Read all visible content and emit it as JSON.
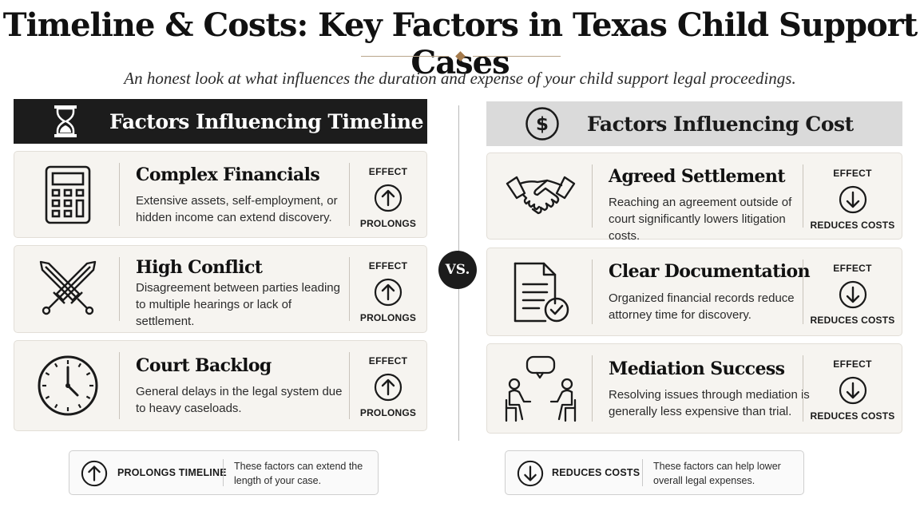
{
  "header": {
    "title": "Timeline & Costs: Key Factors in Texas Child Support Cases",
    "subtitle": "An honest look at what influences the duration and expense of your child support legal proceedings."
  },
  "vs_label": "VS.",
  "timeline": {
    "heading": "Factors Influencing Timeline",
    "heading_icon": "hourglass-icon",
    "effect_label": "EFFECT",
    "cards": [
      {
        "title": "Complex Financials",
        "description": "Extensive assets, self-employment, or hidden income can extend discovery.",
        "icon": "calculator-icon",
        "effect": "PROLONGS",
        "direction": "up"
      },
      {
        "title": "High Conflict",
        "description": "Disagreement between parties leading to multiple hearings or lack of settlement.",
        "icon": "crossed-swords-icon",
        "effect": "PROLONGS",
        "direction": "up"
      },
      {
        "title": "Court Backlog",
        "description": "General delays in the legal system due to heavy caseloads.",
        "icon": "clock-icon",
        "effect": "PROLONGS",
        "direction": "up"
      }
    ],
    "legend": {
      "label": "PROLONGS TIMELINE",
      "description": "These factors can extend the length of your case."
    }
  },
  "cost": {
    "heading": "Factors Influencing Cost",
    "heading_icon": "dollar-icon",
    "effect_label": "EFFECT",
    "cards": [
      {
        "title": "Agreed Settlement",
        "description": "Reaching an agreement outside of court significantly lowers litigation costs.",
        "icon": "handshake-icon",
        "effect": "REDUCES COSTS",
        "direction": "down"
      },
      {
        "title": "Clear Documentation",
        "description": "Organized financial records reduce attorney time for discovery.",
        "icon": "document-check-icon",
        "effect": "REDUCES COSTS",
        "direction": "down"
      },
      {
        "title": "Mediation Success",
        "description": "Resolving issues through mediation is generally less expensive than trial.",
        "icon": "mediation-icon",
        "effect": "REDUCES COSTS",
        "direction": "down"
      }
    ],
    "legend": {
      "label": "REDUCES COSTS",
      "description": "These factors can help lower overall legal expenses."
    }
  },
  "colors": {
    "dark": "#1c1c1c",
    "card_bg": "#f6f4f0",
    "header_light": "#dadada",
    "accent": "#a57b4d"
  }
}
